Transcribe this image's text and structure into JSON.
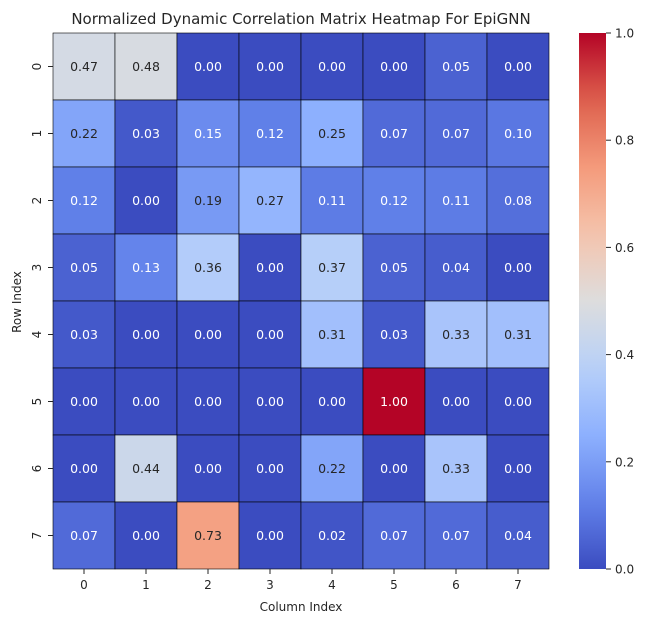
{
  "chart_data": {
    "type": "heatmap",
    "title": "Normalized Dynamic Correlation Matrix Heatmap For EpiGNN",
    "xlabel": "Column Index",
    "ylabel": "Row Index",
    "x_categories": [
      "0",
      "1",
      "2",
      "3",
      "4",
      "5",
      "6",
      "7"
    ],
    "y_categories": [
      "0",
      "1",
      "2",
      "3",
      "4",
      "5",
      "6",
      "7"
    ],
    "values": [
      [
        0.47,
        0.48,
        0.0,
        0.0,
        0.0,
        0.0,
        0.05,
        0.0
      ],
      [
        0.22,
        0.03,
        0.15,
        0.12,
        0.25,
        0.07,
        0.07,
        0.1
      ],
      [
        0.12,
        0.0,
        0.19,
        0.27,
        0.11,
        0.12,
        0.11,
        0.08
      ],
      [
        0.05,
        0.13,
        0.36,
        0.0,
        0.37,
        0.05,
        0.04,
        0.0
      ],
      [
        0.03,
        0.0,
        0.0,
        0.0,
        0.31,
        0.03,
        0.33,
        0.31
      ],
      [
        0.0,
        0.0,
        0.0,
        0.0,
        0.0,
        1.0,
        0.0,
        0.0
      ],
      [
        0.0,
        0.44,
        0.0,
        0.0,
        0.22,
        0.0,
        0.33,
        0.0
      ],
      [
        0.07,
        0.0,
        0.73,
        0.0,
        0.02,
        0.07,
        0.07,
        0.04
      ]
    ],
    "colormap": "coolwarm",
    "vmin": 0.0,
    "vmax": 1.0,
    "colorbar_ticks": [
      0.0,
      0.2,
      0.4,
      0.6,
      0.8,
      1.0
    ],
    "value_format_decimals": 2,
    "cell_border_color": "#000000",
    "text_color_dark": "#262626",
    "text_color_light": "#ffffff",
    "colorbar_label": "",
    "legend": "colorbar-right"
  }
}
